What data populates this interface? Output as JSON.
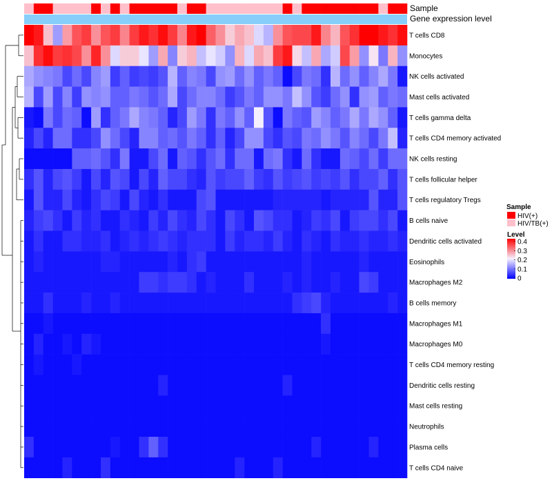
{
  "chart_data": {
    "type": "heatmap",
    "title": "",
    "columns_count": 40,
    "annotation_tracks": [
      {
        "name": "Sample",
        "values": [
          "HIV/TB(+)",
          "HIV(+)",
          "HIV(+)",
          "HIV/TB(+)",
          "HIV/TB(+)",
          "HIV/TB(+)",
          "HIV/TB(+)",
          "HIV(+)",
          "HIV/TB(+)",
          "HIV(+)",
          "HIV/TB(+)",
          "HIV(+)",
          "HIV(+)",
          "HIV(+)",
          "HIV(+)",
          "HIV(+)",
          "HIV/TB(+)",
          "HIV(+)",
          "HIV(+)",
          "HIV/TB(+)",
          "HIV/TB(+)",
          "HIV/TB(+)",
          "HIV/TB(+)",
          "HIV/TB(+)",
          "HIV/TB(+)",
          "HIV/TB(+)",
          "HIV/TB(+)",
          "HIV(+)",
          "HIV/TB(+)",
          "HIV(+)",
          "HIV(+)",
          "HIV(+)",
          "HIV(+)",
          "HIV(+)",
          "HIV(+)",
          "HIV(+)",
          "HIV(+)",
          "HIV/TB(+)",
          "HIV(+)",
          "HIV(+)"
        ]
      },
      {
        "name": "Gene expression level"
      }
    ],
    "rows": [
      {
        "label": "T cells CD8",
        "values": [
          0.4,
          0.38,
          0.24,
          0.13,
          0.27,
          0.33,
          0.35,
          0.28,
          0.33,
          0.35,
          0.29,
          0.35,
          0.38,
          0.36,
          0.39,
          0.35,
          0.29,
          0.38,
          0.4,
          0.32,
          0.28,
          0.23,
          0.26,
          0.24,
          0.18,
          0.15,
          0.28,
          0.33,
          0.34,
          0.34,
          0.38,
          0.29,
          0.25,
          0.33,
          0.36,
          0.4,
          0.4,
          0.38,
          0.36,
          0.39
        ]
      },
      {
        "label": "Monocytes",
        "values": [
          0.24,
          0.36,
          0.39,
          0.35,
          0.36,
          0.34,
          0.28,
          0.37,
          0.28,
          0.18,
          0.23,
          0.23,
          0.19,
          0.13,
          0.26,
          0.11,
          0.23,
          0.25,
          0.16,
          0.19,
          0.17,
          0.12,
          0.25,
          0.18,
          0.26,
          0.24,
          0.35,
          0.38,
          0.22,
          0.16,
          0.26,
          0.14,
          0.17,
          0.34,
          0.27,
          0.12,
          0.21,
          0.1,
          0.25,
          0.12
        ]
      },
      {
        "label": "NK cells activated",
        "values": [
          0.14,
          0.12,
          0.11,
          0.1,
          0.06,
          0.09,
          0.06,
          0.11,
          0.13,
          0.05,
          0.08,
          0.05,
          0.06,
          0.05,
          0.07,
          0.15,
          0.08,
          0.11,
          0.1,
          0.06,
          0.12,
          0.13,
          0.09,
          0.12,
          0.08,
          0.1,
          0.08,
          0.01,
          0.06,
          0.1,
          0.09,
          0.04,
          0.15,
          0.09,
          0.12,
          0.08,
          0.11,
          0.14,
          0.1,
          0.02
        ]
      },
      {
        "label": "Mast cells activated",
        "values": [
          0.15,
          0.06,
          0.13,
          0.06,
          0.11,
          0.05,
          0.12,
          0.11,
          0.12,
          0.08,
          0.08,
          0.1,
          0.09,
          0.07,
          0.09,
          0.14,
          0.06,
          0.09,
          0.11,
          0.11,
          0.09,
          0.05,
          0.07,
          0.1,
          0.08,
          0.12,
          0.12,
          0.1,
          0.16,
          0.12,
          0.07,
          0.05,
          0.09,
          0.12,
          0.04,
          0.12,
          0.13,
          0.08,
          0.1,
          0.09
        ]
      },
      {
        "label": "T cells gamma delta",
        "values": [
          0.02,
          0.01,
          0.1,
          0.06,
          0.09,
          0.08,
          0.01,
          0.13,
          0.04,
          0.08,
          0.1,
          0.14,
          0.11,
          0.1,
          0.08,
          0.03,
          0.06,
          0.13,
          0.1,
          0.04,
          0.1,
          0.08,
          0.12,
          0.08,
          0.2,
          0.07,
          0.01,
          0.1,
          0.08,
          0.07,
          0.13,
          0.11,
          0.08,
          0.1,
          0.14,
          0.1,
          0.14,
          0.12,
          0.08,
          0.02
        ]
      },
      {
        "label": "T cells CD4 memory activated",
        "values": [
          0.03,
          0.06,
          0.03,
          0.09,
          0.09,
          0.04,
          0.04,
          0.06,
          0.12,
          0.09,
          0.06,
          0.03,
          0.11,
          0.11,
          0.08,
          0.09,
          0.07,
          0.1,
          0.08,
          0.04,
          0.08,
          0.03,
          0.06,
          0.12,
          0.12,
          0.06,
          0.04,
          0.07,
          0.06,
          0.1,
          0.09,
          0.12,
          0.1,
          0.07,
          0.11,
          0.09,
          0.06,
          0.1,
          0.16,
          0.03
        ]
      },
      {
        "label": "NK cells resting",
        "values": [
          0.01,
          0.01,
          0.01,
          0.01,
          0.01,
          0.08,
          0.08,
          0.09,
          0.07,
          0.04,
          0.1,
          0.02,
          0.02,
          0.06,
          0.09,
          0.02,
          0.08,
          0.07,
          0.04,
          0.07,
          0.09,
          0.04,
          0.09,
          0.09,
          0.02,
          0.09,
          0.1,
          0.04,
          0.02,
          0.09,
          0.04,
          0.02,
          0.02,
          0.09,
          0.08,
          0.06,
          0.09,
          0.05,
          0.09,
          0.09
        ]
      },
      {
        "label": "T cells follicular helper",
        "values": [
          0.04,
          0.07,
          0.03,
          0.06,
          0.07,
          0.05,
          0.02,
          0.06,
          0.03,
          0.07,
          0.06,
          0.02,
          0.06,
          0.03,
          0.08,
          0.06,
          0.06,
          0.04,
          0.03,
          0.07,
          0.05,
          0.06,
          0.06,
          0.08,
          0.05,
          0.04,
          0.07,
          0.05,
          0.06,
          0.07,
          0.05,
          0.06,
          0.05,
          0.07,
          0.04,
          0.06,
          0.06,
          0.08,
          0.04,
          0.07
        ]
      },
      {
        "label": "T cells regulatory  Tregs",
        "values": [
          0.02,
          0.07,
          0.03,
          0.03,
          0.06,
          0.03,
          0.02,
          0.04,
          0.06,
          0.05,
          0.02,
          0.06,
          0.03,
          0.02,
          0.04,
          0.02,
          0.02,
          0.02,
          0.06,
          0.07,
          0.02,
          0.02,
          0.02,
          0.02,
          0.02,
          0.02,
          0.03,
          0.03,
          0.03,
          0.03,
          0.03,
          0.02,
          0.03,
          0.03,
          0.03,
          0.03,
          0.07,
          0.03,
          0.03,
          0.07
        ]
      },
      {
        "label": "B cells naive",
        "values": [
          0.03,
          0.05,
          0.06,
          0.04,
          0.02,
          0.05,
          0.03,
          0.04,
          0.02,
          0.02,
          0.04,
          0.03,
          0.02,
          0.05,
          0.03,
          0.06,
          0.04,
          0.03,
          0.06,
          0.04,
          0.02,
          0.06,
          0.04,
          0.02,
          0.07,
          0.06,
          0.04,
          0.04,
          0.02,
          0.03,
          0.05,
          0.04,
          0.06,
          0.02,
          0.05,
          0.06,
          0.06,
          0.04,
          0.06,
          0.02
        ]
      },
      {
        "label": "Dendritic cells activated",
        "values": [
          0.02,
          0.04,
          0.02,
          0.02,
          0.04,
          0.04,
          0.03,
          0.03,
          0.04,
          0.02,
          0.03,
          0.04,
          0.03,
          0.04,
          0.05,
          0.04,
          0.03,
          0.04,
          0.04,
          0.04,
          0.02,
          0.05,
          0.03,
          0.04,
          0.04,
          0.03,
          0.05,
          0.03,
          0.02,
          0.04,
          0.03,
          0.02,
          0.04,
          0.03,
          0.03,
          0.04,
          0.03,
          0.03,
          0.04,
          0.03
        ]
      },
      {
        "label": "Eosinophils",
        "values": [
          0.02,
          0.03,
          0.02,
          0.02,
          0.02,
          0.02,
          0.02,
          0.02,
          0.03,
          0.03,
          0.02,
          0.02,
          0.02,
          0.02,
          0.02,
          0.03,
          0.02,
          0.04,
          0.05,
          0.02,
          0.02,
          0.02,
          0.02,
          0.02,
          0.02,
          0.02,
          0.02,
          0.02,
          0.02,
          0.03,
          0.02,
          0.02,
          0.02,
          0.02,
          0.02,
          0.03,
          0.02,
          0.02,
          0.02,
          0.02
        ]
      },
      {
        "label": "Macrophages M2",
        "values": [
          0.02,
          0.02,
          0.02,
          0.02,
          0.02,
          0.02,
          0.02,
          0.02,
          0.02,
          0.02,
          0.02,
          0.02,
          0.05,
          0.05,
          0.04,
          0.05,
          0.05,
          0.04,
          0.02,
          0.03,
          0.02,
          0.02,
          0.02,
          0.04,
          0.02,
          0.02,
          0.02,
          0.03,
          0.02,
          0.03,
          0.02,
          0.02,
          0.03,
          0.02,
          0.02,
          0.06,
          0.05,
          0.02,
          0.02,
          0.02
        ]
      },
      {
        "label": "B cells memory",
        "values": [
          0.02,
          0.02,
          0.04,
          0.02,
          0.02,
          0.02,
          0.03,
          0.02,
          0.02,
          0.03,
          0.02,
          0.02,
          0.02,
          0.02,
          0.02,
          0.02,
          0.02,
          0.02,
          0.02,
          0.02,
          0.02,
          0.02,
          0.02,
          0.02,
          0.02,
          0.02,
          0.02,
          0.02,
          0.04,
          0.05,
          0.06,
          0.03,
          0.02,
          0.02,
          0.02,
          0.02,
          0.02,
          0.02,
          0.03,
          0.02
        ]
      },
      {
        "label": "Macrophages M1",
        "values": [
          0.01,
          0.01,
          0.02,
          0.01,
          0.01,
          0.01,
          0.01,
          0.01,
          0.01,
          0.01,
          0.01,
          0.01,
          0.01,
          0.01,
          0.01,
          0.01,
          0.01,
          0.01,
          0.01,
          0.01,
          0.01,
          0.01,
          0.01,
          0.01,
          0.01,
          0.01,
          0.01,
          0.01,
          0.01,
          0.01,
          0.01,
          0.04,
          0.01,
          0.01,
          0.01,
          0.01,
          0.01,
          0.01,
          0.01,
          0.01
        ]
      },
      {
        "label": "Macrophages M0",
        "values": [
          0.01,
          0.03,
          0.01,
          0.01,
          0.02,
          0.01,
          0.03,
          0.02,
          0.01,
          0.01,
          0.01,
          0.01,
          0.01,
          0.01,
          0.01,
          0.01,
          0.01,
          0.01,
          0.01,
          0.01,
          0.01,
          0.01,
          0.01,
          0.01,
          0.01,
          0.01,
          0.01,
          0.01,
          0.01,
          0.01,
          0.01,
          0.02,
          0.01,
          0.01,
          0.01,
          0.01,
          0.01,
          0.01,
          0.01,
          0.01
        ]
      },
      {
        "label": "T cells CD4 memory resting",
        "values": [
          0.01,
          0.02,
          0.01,
          0.01,
          0.01,
          0.02,
          0.01,
          0.01,
          0.01,
          0.01,
          0.01,
          0.01,
          0.01,
          0.01,
          0.01,
          0.01,
          0.01,
          0.01,
          0.01,
          0.01,
          0.01,
          0.01,
          0.01,
          0.01,
          0.01,
          0.01,
          0.01,
          0.01,
          0.01,
          0.01,
          0.01,
          0.01,
          0.01,
          0.01,
          0.01,
          0.01,
          0.01,
          0.01,
          0.01,
          0.01
        ]
      },
      {
        "label": "Dendritic cells resting",
        "values": [
          0.01,
          0.01,
          0.01,
          0.01,
          0.01,
          0.01,
          0.01,
          0.01,
          0.01,
          0.01,
          0.01,
          0.01,
          0.01,
          0.01,
          0.03,
          0.01,
          0.01,
          0.01,
          0.01,
          0.01,
          0.01,
          0.01,
          0.01,
          0.01,
          0.01,
          0.01,
          0.01,
          0.03,
          0.01,
          0.01,
          0.01,
          0.01,
          0.01,
          0.01,
          0.01,
          0.01,
          0.01,
          0.01,
          0.01,
          0.01
        ]
      },
      {
        "label": "Mast cells resting",
        "values": [
          0.01,
          0.01,
          0.01,
          0.01,
          0.01,
          0.01,
          0.01,
          0.01,
          0.01,
          0.01,
          0.01,
          0.01,
          0.01,
          0.01,
          0.01,
          0.01,
          0.01,
          0.01,
          0.01,
          0.01,
          0.01,
          0.01,
          0.01,
          0.01,
          0.01,
          0.01,
          0.01,
          0.01,
          0.01,
          0.01,
          0.01,
          0.01,
          0.01,
          0.01,
          0.01,
          0.01,
          0.01,
          0.01,
          0.01,
          0.01
        ]
      },
      {
        "label": "Neutrophils",
        "values": [
          0.01,
          0.01,
          0.01,
          0.01,
          0.01,
          0.01,
          0.01,
          0.01,
          0.01,
          0.01,
          0.01,
          0.01,
          0.01,
          0.01,
          0.01,
          0.01,
          0.01,
          0.01,
          0.01,
          0.01,
          0.01,
          0.01,
          0.01,
          0.01,
          0.01,
          0.01,
          0.01,
          0.01,
          0.01,
          0.01,
          0.01,
          0.01,
          0.01,
          0.01,
          0.01,
          0.01,
          0.01,
          0.01,
          0.01,
          0.01
        ]
      },
      {
        "label": "Plasma cells",
        "values": [
          0.04,
          0.01,
          0.01,
          0.01,
          0.01,
          0.01,
          0.01,
          0.01,
          0.01,
          0.02,
          0.01,
          0.01,
          0.04,
          0.08,
          0.04,
          0.01,
          0.01,
          0.01,
          0.01,
          0.01,
          0.01,
          0.01,
          0.01,
          0.01,
          0.01,
          0.01,
          0.01,
          0.01,
          0.01,
          0.01,
          0.03,
          0.01,
          0.01,
          0.01,
          0.01,
          0.01,
          0.03,
          0.01,
          0.01,
          0.01
        ]
      },
      {
        "label": "T cells CD4 naive",
        "values": [
          0.01,
          0.01,
          0.01,
          0.01,
          0.03,
          0.01,
          0.01,
          0.01,
          0.04,
          0.01,
          0.01,
          0.01,
          0.01,
          0.01,
          0.01,
          0.01,
          0.01,
          0.01,
          0.01,
          0.01,
          0.01,
          0.01,
          0.03,
          0.01,
          0.01,
          0.01,
          0.03,
          0.01,
          0.01,
          0.01,
          0.01,
          0.01,
          0.01,
          0.01,
          0.01,
          0.01,
          0.01,
          0.01,
          0.01,
          0.01
        ]
      }
    ],
    "legend": {
      "sample_title": "Sample",
      "sample_items": [
        {
          "label": "HIV(+)",
          "color": "#ff0000"
        },
        {
          "label": "HIV/TB(+)",
          "color": "#ffc0cb"
        }
      ],
      "level_title": "Level",
      "level_ticks": [
        0.4,
        0.3,
        0.2,
        0.1,
        0
      ],
      "level_tick_labels": [
        "0.4",
        "0.3",
        "0.2",
        "0.1",
        "0"
      ],
      "level_range": [
        0,
        0.4
      ]
    },
    "colors": {
      "low": "#0000ff",
      "mid": "#f5f0ff",
      "high": "#ff0000",
      "gene_expression_track": "#87cefa"
    },
    "xlabel": "",
    "ylabel": ""
  }
}
